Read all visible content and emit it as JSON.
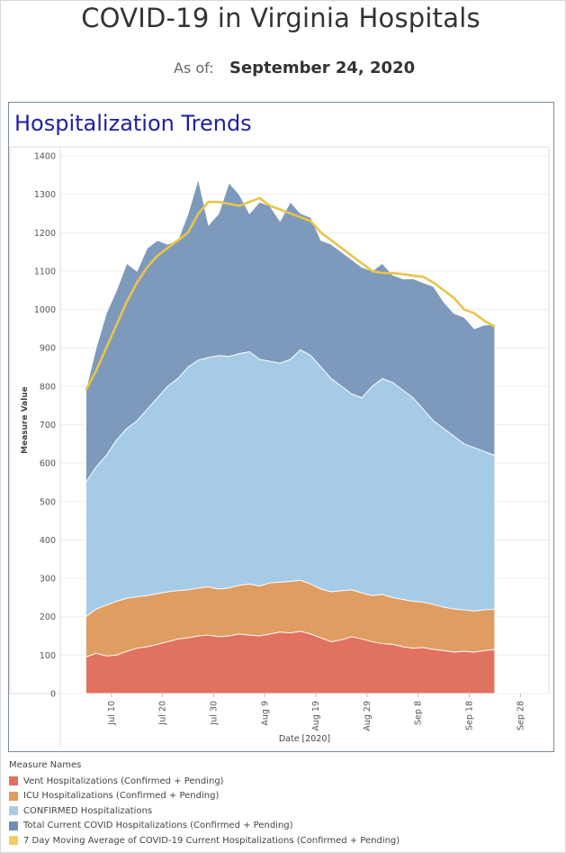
{
  "header": {
    "title": "COVID-19 in Virginia Hospitals",
    "as_of_label": "As of:",
    "as_of_date": "September 24, 2020"
  },
  "panel": {
    "title": "Hospitalization Trends"
  },
  "legend": {
    "title": "Measure Names",
    "items": [
      {
        "label": "Vent Hospitalizations (Confirmed + Pending)",
        "color": "#e07060"
      },
      {
        "label": "ICU Hospitalizations (Confirmed + Pending)",
        "color": "#e39a5b"
      },
      {
        "label": "CONFIRMED Hospitalizations",
        "color": "#a9cde8"
      },
      {
        "label": "Total Current COVID Hospitalizations (Confirmed + Pending)",
        "color": "#6f8fb5"
      },
      {
        "label": "7 Day Moving Average of COVID-19 Current Hospitalizations (Confirmed + Pending)",
        "color": "#f0d060"
      }
    ]
  },
  "chart_data": {
    "type": "area",
    "xlabel": "Date [2020]",
    "ylabel": "Measure Value",
    "ylim": [
      0,
      1400
    ],
    "yticks": [
      0,
      100,
      200,
      300,
      400,
      500,
      600,
      700,
      800,
      900,
      1000,
      1100,
      1200,
      1300,
      1400
    ],
    "xticks": [
      {
        "date": "2020-07-10",
        "label": "Jul 10"
      },
      {
        "date": "2020-07-20",
        "label": "Jul 20"
      },
      {
        "date": "2020-07-30",
        "label": "Jul 30"
      },
      {
        "date": "2020-08-09",
        "label": "Aug 9"
      },
      {
        "date": "2020-08-19",
        "label": "Aug 19"
      },
      {
        "date": "2020-08-29",
        "label": "Aug 29"
      },
      {
        "date": "2020-09-08",
        "label": "Sep 8"
      },
      {
        "date": "2020-09-18",
        "label": "Sep 18"
      },
      {
        "date": "2020-09-28",
        "label": "Sep 28"
      }
    ],
    "x_range": [
      "2020-06-30",
      "2020-09-29"
    ],
    "grid": true,
    "legend_position": "bottom",
    "x": [
      "2020-07-05",
      "2020-07-07",
      "2020-07-09",
      "2020-07-11",
      "2020-07-13",
      "2020-07-15",
      "2020-07-17",
      "2020-07-19",
      "2020-07-21",
      "2020-07-23",
      "2020-07-25",
      "2020-07-27",
      "2020-07-29",
      "2020-07-31",
      "2020-08-02",
      "2020-08-04",
      "2020-08-06",
      "2020-08-08",
      "2020-08-10",
      "2020-08-12",
      "2020-08-14",
      "2020-08-16",
      "2020-08-18",
      "2020-08-20",
      "2020-08-22",
      "2020-08-24",
      "2020-08-26",
      "2020-08-28",
      "2020-08-30",
      "2020-09-01",
      "2020-09-03",
      "2020-09-05",
      "2020-09-07",
      "2020-09-09",
      "2020-09-11",
      "2020-09-13",
      "2020-09-15",
      "2020-09-17",
      "2020-09-19",
      "2020-09-21",
      "2020-09-23"
    ],
    "series": [
      {
        "name": "Vent Hospitalizations (Confirmed + Pending)",
        "color": "#e07060",
        "values": [
          95,
          105,
          98,
          100,
          110,
          118,
          122,
          128,
          135,
          142,
          145,
          150,
          152,
          148,
          150,
          155,
          152,
          150,
          155,
          160,
          158,
          162,
          155,
          145,
          135,
          140,
          148,
          142,
          135,
          130,
          128,
          122,
          118,
          120,
          115,
          112,
          108,
          110,
          108,
          112,
          115
        ]
      },
      {
        "name": "ICU Hospitalizations (Confirmed + Pending)",
        "color": "#e39a5b",
        "values": [
          200,
          220,
          230,
          240,
          248,
          252,
          255,
          260,
          265,
          268,
          270,
          275,
          278,
          272,
          275,
          282,
          285,
          280,
          288,
          290,
          292,
          295,
          285,
          272,
          265,
          268,
          270,
          262,
          255,
          258,
          250,
          245,
          240,
          238,
          232,
          225,
          220,
          218,
          215,
          218,
          220
        ]
      },
      {
        "name": "CONFIRMED Hospitalizations",
        "color": "#a9cde8",
        "values": [
          550,
          590,
          620,
          660,
          690,
          710,
          740,
          770,
          800,
          820,
          850,
          868,
          875,
          880,
          878,
          885,
          890,
          870,
          865,
          860,
          870,
          895,
          880,
          850,
          820,
          800,
          780,
          770,
          800,
          820,
          810,
          790,
          770,
          740,
          710,
          690,
          670,
          650,
          640,
          630,
          620
        ]
      },
      {
        "name": "Total Current COVID Hospitalizations (Confirmed + Pending)",
        "color": "#6f8fb5",
        "values": [
          790,
          900,
          990,
          1050,
          1120,
          1100,
          1160,
          1180,
          1170,
          1180,
          1250,
          1340,
          1220,
          1250,
          1330,
          1300,
          1250,
          1280,
          1270,
          1230,
          1280,
          1250,
          1240,
          1180,
          1170,
          1150,
          1130,
          1110,
          1100,
          1120,
          1090,
          1080,
          1080,
          1070,
          1060,
          1020,
          990,
          980,
          950,
          960,
          960
        ]
      },
      {
        "name": "7 Day Moving Average of COVID-19 Current Hospitalizations (Confirmed + Pending)",
        "color": "#f0d060",
        "values": [
          790,
          840,
          900,
          960,
          1020,
          1070,
          1110,
          1140,
          1160,
          1180,
          1200,
          1250,
          1280,
          1280,
          1275,
          1270,
          1280,
          1290,
          1270,
          1260,
          1250,
          1240,
          1230,
          1200,
          1180,
          1160,
          1140,
          1120,
          1100,
          1095,
          1095,
          1092,
          1088,
          1085,
          1070,
          1050,
          1030,
          1000,
          990,
          970,
          955
        ]
      }
    ]
  }
}
